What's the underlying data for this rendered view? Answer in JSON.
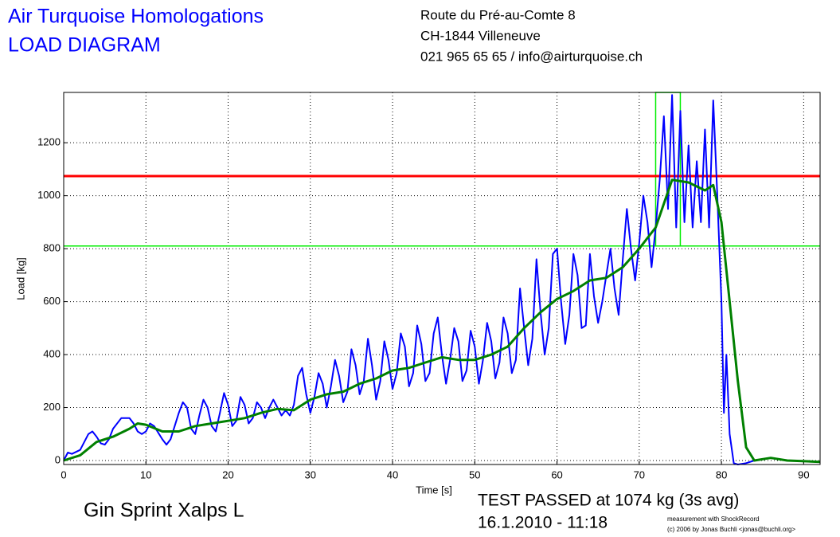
{
  "header": {
    "title_lines": [
      "Air Turquoise Homologations",
      "LOAD DIAGRAM"
    ],
    "address_lines": [
      "Route du Pré-au-Comte 8",
      "CH-1844 Villeneuve",
      "021 965 65 65 / info@airturquoise.ch"
    ]
  },
  "chart_data": {
    "type": "line",
    "x_label": "Time [s]",
    "y_label": "Load [kg]",
    "xlim": [
      0,
      92
    ],
    "ylim": [
      -15,
      1390
    ],
    "xticks": [
      0,
      10,
      20,
      30,
      40,
      50,
      60,
      70,
      80,
      90
    ],
    "yticks": [
      0,
      200,
      400,
      600,
      800,
      1000,
      1200
    ],
    "grid": true,
    "reference_lines": [
      {
        "value": 1074,
        "color": "#ff0000"
      },
      {
        "value": 810,
        "color": "#00ee00"
      }
    ],
    "highlight_box": {
      "x": [
        72,
        75
      ],
      "ymin": 810,
      "color": "#00ee00"
    },
    "series": [
      {
        "color": "#0000ff",
        "x": [
          0,
          0.5,
          1,
          2,
          3,
          3.5,
          4,
          4.5,
          5,
          5.5,
          6,
          7,
          8,
          8.5,
          9,
          9.5,
          10,
          10.5,
          11,
          12,
          12.5,
          13,
          14,
          14.5,
          15,
          15.5,
          16,
          16.5,
          17,
          17.5,
          18,
          18.5,
          19,
          19.5,
          20,
          20.5,
          21,
          21.5,
          22,
          22.5,
          23,
          23.5,
          24,
          24.5,
          25,
          25.5,
          26,
          26.5,
          27,
          27.5,
          28,
          28.5,
          29,
          29.5,
          30,
          30.5,
          31,
          31.5,
          32,
          32.5,
          33,
          33.5,
          34,
          34.5,
          35,
          35.5,
          36,
          36.5,
          37,
          37.5,
          38,
          38.5,
          39,
          39.5,
          40,
          40.5,
          41,
          41.5,
          42,
          42.5,
          43,
          43.5,
          44,
          44.5,
          45,
          45.5,
          46,
          46.5,
          47,
          47.5,
          48,
          48.5,
          49,
          49.5,
          50,
          50.5,
          51,
          51.5,
          52,
          52.5,
          53,
          53.5,
          54,
          54.5,
          55,
          55.5,
          56,
          56.5,
          57,
          57.5,
          58,
          58.5,
          59,
          59.5,
          60,
          60.5,
          61,
          61.5,
          62,
          62.5,
          63,
          63.5,
          64,
          64.5,
          65,
          65.5,
          66,
          66.5,
          67,
          67.5,
          68,
          68.5,
          69,
          69.5,
          70,
          70.5,
          71,
          71.5,
          72,
          72.5,
          73,
          73.5,
          74,
          74.5,
          75,
          75.5,
          76,
          76.5,
          77,
          77.5,
          78,
          78.5,
          79,
          79.5,
          80,
          80.3,
          80.6,
          81,
          81.5,
          82,
          83,
          84,
          85,
          86,
          88,
          92
        ],
        "values": [
          0,
          30,
          25,
          40,
          100,
          110,
          90,
          65,
          60,
          80,
          120,
          160,
          160,
          140,
          110,
          100,
          110,
          140,
          130,
          80,
          60,
          80,
          180,
          220,
          200,
          120,
          100,
          170,
          230,
          200,
          130,
          110,
          180,
          255,
          210,
          130,
          150,
          240,
          210,
          140,
          160,
          220,
          200,
          160,
          200,
          230,
          200,
          170,
          190,
          170,
          210,
          320,
          350,
          250,
          180,
          240,
          330,
          290,
          200,
          280,
          380,
          320,
          220,
          260,
          420,
          360,
          250,
          300,
          460,
          360,
          230,
          300,
          450,
          380,
          270,
          330,
          480,
          430,
          280,
          330,
          510,
          440,
          300,
          330,
          480,
          540,
          400,
          290,
          380,
          500,
          450,
          300,
          340,
          490,
          430,
          290,
          380,
          520,
          450,
          310,
          370,
          540,
          480,
          330,
          380,
          650,
          500,
          360,
          460,
          760,
          560,
          400,
          500,
          780,
          800,
          600,
          440,
          550,
          780,
          700,
          500,
          510,
          780,
          620,
          520,
          600,
          700,
          800,
          650,
          550,
          760,
          950,
          800,
          680,
          820,
          1000,
          900,
          730,
          880,
          1060,
          1300,
          950,
          1380,
          880,
          1320,
          900,
          1190,
          880,
          1130,
          900,
          1250,
          880,
          1360,
          1000,
          600,
          180,
          400,
          100,
          -10,
          -15,
          -10,
          0,
          5,
          10,
          0,
          -5
        ]
      },
      {
        "color": "#008000",
        "x": [
          0,
          2,
          4,
          6,
          8,
          9,
          10,
          12,
          14,
          16,
          18,
          20,
          22,
          24,
          26,
          28,
          30,
          32,
          34,
          36,
          38,
          40,
          42,
          44,
          46,
          48,
          50,
          52,
          54,
          56,
          58,
          60,
          62,
          64,
          66,
          68,
          70,
          72,
          74,
          76,
          78,
          79,
          80,
          81,
          82,
          83,
          84,
          86,
          88,
          92
        ],
        "values": [
          0,
          20,
          70,
          90,
          120,
          140,
          135,
          110,
          110,
          130,
          140,
          150,
          160,
          180,
          195,
          190,
          230,
          250,
          260,
          290,
          310,
          340,
          350,
          370,
          390,
          380,
          380,
          400,
          430,
          500,
          560,
          610,
          640,
          680,
          690,
          730,
          800,
          880,
          1060,
          1050,
          1020,
          1040,
          900,
          600,
          300,
          50,
          0,
          10,
          0,
          -5
        ]
      }
    ]
  },
  "footer": {
    "glider": "Gin Sprint Xalps L",
    "result": "TEST PASSED at 1074 kg (3s avg)",
    "date": "16.1.2010 - 11:18",
    "credits": [
      "measurement with ShockRecord",
      "(c) 2006 by Jonas Buchli <jonas@buchli.org>"
    ]
  }
}
